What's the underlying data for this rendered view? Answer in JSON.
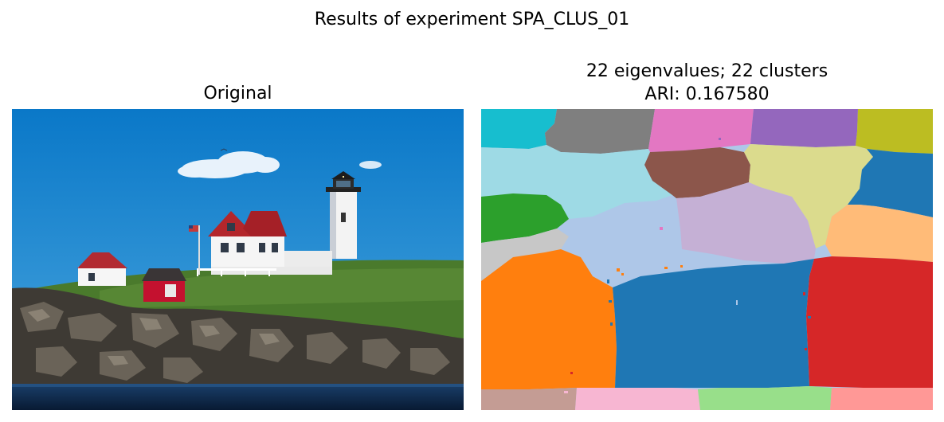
{
  "figure": {
    "suptitle": "Results of experiment SPA_CLUS_01",
    "left_panel": {
      "title": "Original"
    },
    "right_panel": {
      "title_line1": "22 eigenvalues; 22 clusters",
      "title_line2": "ARI: 0.167580"
    }
  },
  "segmentation": {
    "n_clusters": 22,
    "palette": [
      "#17becf",
      "#7f7f7f",
      "#e377c2",
      "#9467bd",
      "#bcbd22",
      "#9edae5",
      "#8c564b",
      "#dbdb8d",
      "#1f77b4",
      "#2ca02c",
      "#aec7e8",
      "#c5b0d5",
      "#ffbb78",
      "#c7c7c7",
      "#ff7f0e",
      "#d62728",
      "#c49c94",
      "#f7b6d2",
      "#98df8a",
      "#ff9896"
    ]
  }
}
